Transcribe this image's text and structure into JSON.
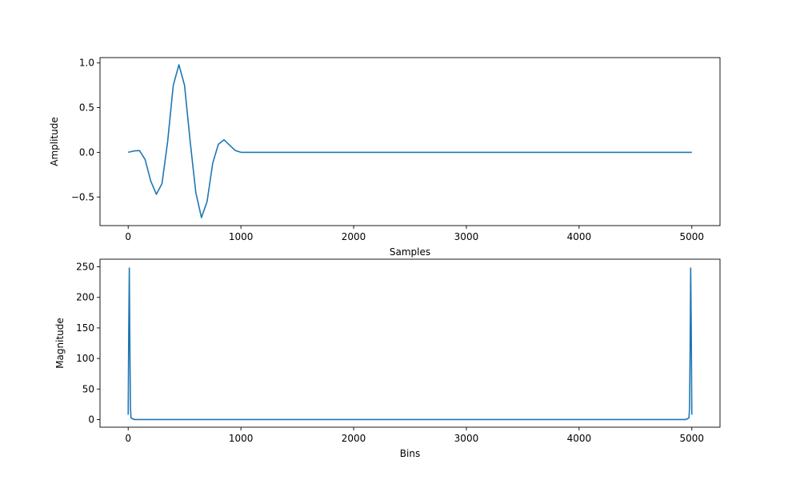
{
  "chart_data": [
    {
      "type": "line",
      "title": "",
      "xlabel": "Samples",
      "ylabel": "Amplitude",
      "xlim": [
        -250,
        5250
      ],
      "ylim": [
        -0.82,
        1.06
      ],
      "xticks": [
        0,
        1000,
        2000,
        3000,
        4000,
        5000
      ],
      "xtick_labels": [
        "0",
        "1000",
        "2000",
        "3000",
        "4000",
        "5000"
      ],
      "yticks": [
        -0.5,
        0.0,
        0.5,
        1.0
      ],
      "ytick_labels": [
        "−0.5",
        "0.0",
        "0.5",
        "1.0"
      ],
      "grid": false,
      "series": [
        {
          "color": "#1f77b4",
          "x": [
            0,
            50,
            100,
            150,
            200,
            250,
            300,
            350,
            400,
            450,
            500,
            550,
            600,
            650,
            700,
            750,
            800,
            850,
            900,
            950,
            1000,
            1100,
            2000,
            3000,
            4000,
            5000
          ],
          "y": [
            0.0,
            0.015,
            0.02,
            -0.08,
            -0.32,
            -0.47,
            -0.35,
            0.12,
            0.75,
            0.98,
            0.75,
            0.12,
            -0.45,
            -0.73,
            -0.55,
            -0.12,
            0.09,
            0.14,
            0.08,
            0.02,
            0.0,
            0.0,
            0.0,
            0.0,
            0.0,
            0.0
          ]
        }
      ]
    },
    {
      "type": "line",
      "title": "",
      "xlabel": "Bins",
      "ylabel": "Magnitude",
      "xlim": [
        -250,
        5250
      ],
      "ylim": [
        -12.5,
        262.5
      ],
      "xticks": [
        0,
        1000,
        2000,
        3000,
        4000,
        5000
      ],
      "xtick_labels": [
        "0",
        "1000",
        "2000",
        "3000",
        "4000",
        "5000"
      ],
      "yticks": [
        0,
        50,
        100,
        150,
        200,
        250
      ],
      "ytick_labels": [
        "0",
        "50",
        "100",
        "150",
        "200",
        "250"
      ],
      "grid": false,
      "series": [
        {
          "color": "#1f77b4",
          "x": [
            0,
            5,
            10,
            15,
            20,
            25,
            40,
            60,
            100,
            1000,
            2000,
            3000,
            4000,
            4900,
            4940,
            4960,
            4975,
            4980,
            4985,
            4990,
            4995,
            5000
          ],
          "y": [
            8,
            150,
            248,
            120,
            20,
            3,
            1,
            0,
            0,
            0,
            0,
            0,
            0,
            0,
            0,
            1,
            3,
            20,
            120,
            248,
            150,
            8
          ]
        }
      ]
    }
  ]
}
